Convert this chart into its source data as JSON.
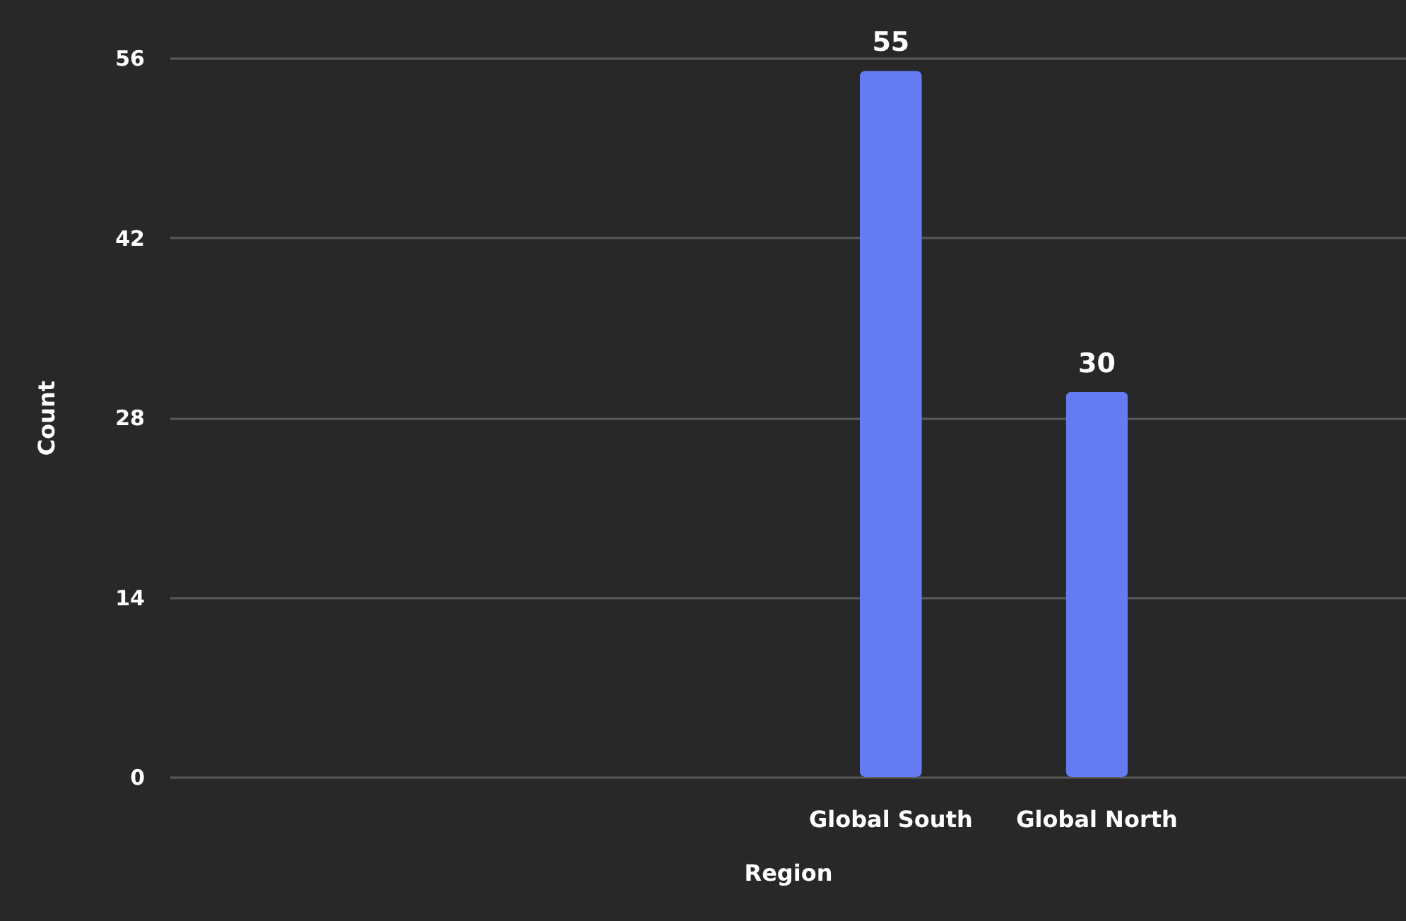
{
  "chart_data": {
    "type": "bar",
    "xlabel": "Region",
    "ylabel": "Count",
    "categories": [
      null,
      null,
      null,
      "Global South",
      "Global North",
      null
    ],
    "values": [
      null,
      null,
      null,
      55,
      30,
      null
    ],
    "color": "#647bf2",
    "ylim": [
      0,
      56
    ],
    "yticks": [
      0,
      14,
      28,
      42,
      56
    ],
    "grid": "y",
    "data_labels": true
  }
}
